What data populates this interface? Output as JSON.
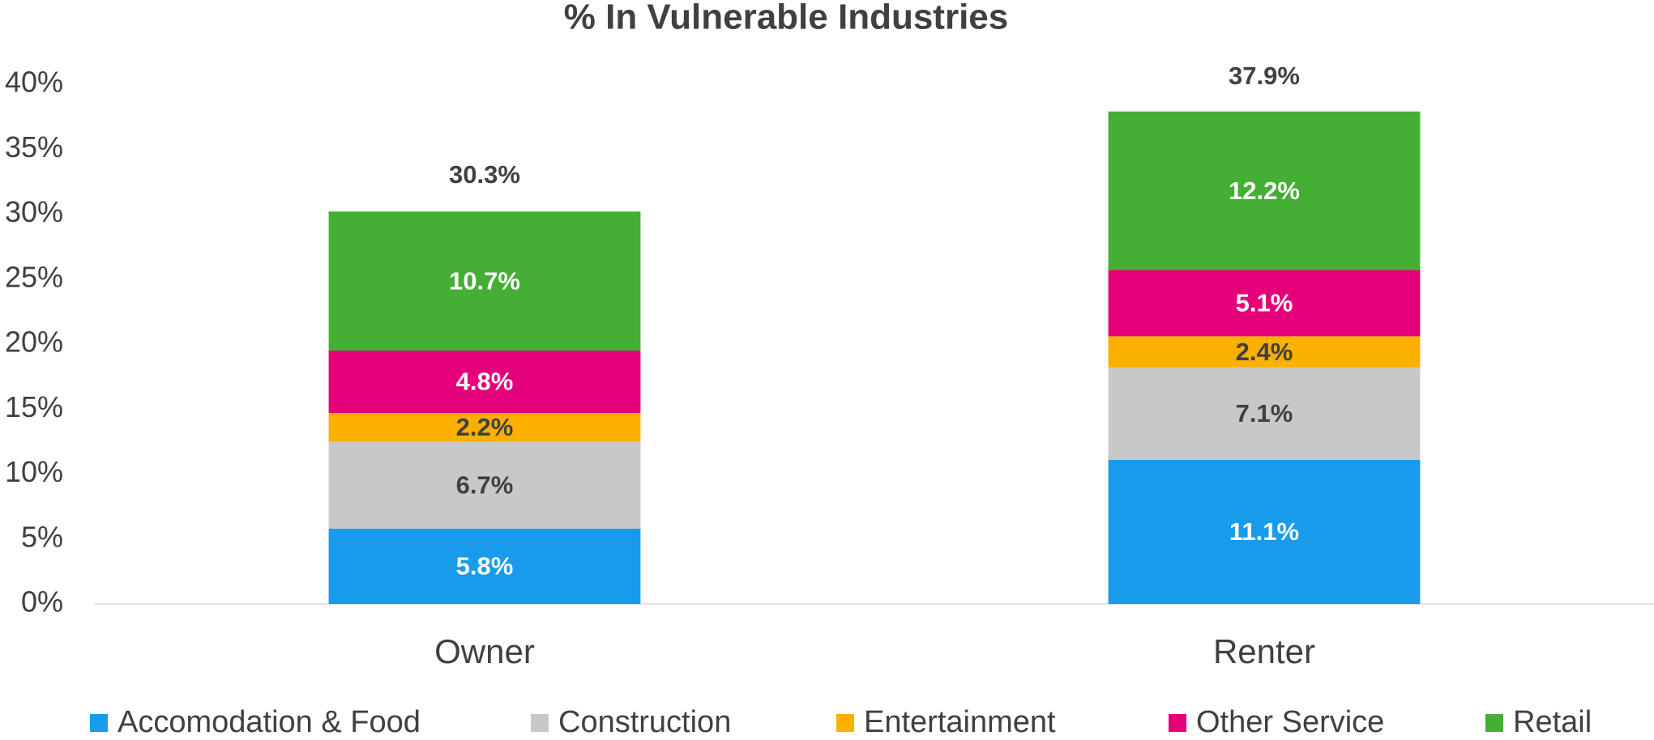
{
  "chart_data": {
    "type": "stacked_bar",
    "title": "% In Vulnerable Industries",
    "categories": [
      "Owner",
      "Renter"
    ],
    "series": [
      {
        "name": "Accomodation & Food",
        "color": "#179bea",
        "label_color": "#ffffff",
        "values": [
          5.8,
          11.1
        ],
        "value_labels": [
          "5.8%",
          "11.1%"
        ]
      },
      {
        "name": "Construction",
        "color": "#c8c8c8",
        "label_color": "#404040",
        "values": [
          6.7,
          7.1
        ],
        "value_labels": [
          "6.7%",
          "7.1%"
        ]
      },
      {
        "name": "Entertainment",
        "color": "#fbb000",
        "label_color": "#404040",
        "values": [
          2.2,
          2.4
        ],
        "value_labels": [
          "2.2%",
          "2.4%"
        ]
      },
      {
        "name": "Other Service",
        "color": "#e5007a",
        "label_color": "#ffffff",
        "values": [
          4.8,
          5.1
        ],
        "value_labels": [
          "4.8%",
          "5.1%"
        ]
      },
      {
        "name": "Retail",
        "color": "#44ae35",
        "label_color": "#ffffff",
        "values": [
          10.7,
          12.2
        ],
        "value_labels": [
          "10.7%",
          "12.2%"
        ]
      }
    ],
    "totals": [
      30.3,
      37.9
    ],
    "total_labels": [
      "30.3%",
      "37.9%"
    ],
    "ylim": [
      0,
      40
    ],
    "yticks": [
      {
        "value": 0,
        "label": "0%"
      },
      {
        "value": 5,
        "label": "5%"
      },
      {
        "value": 10,
        "label": "10%"
      },
      {
        "value": 15,
        "label": "15%"
      },
      {
        "value": 20,
        "label": "20%"
      },
      {
        "value": 25,
        "label": "25%"
      },
      {
        "value": 30,
        "label": "30%"
      },
      {
        "value": 35,
        "label": "35%"
      },
      {
        "value": 40,
        "label": "40%"
      }
    ],
    "grid": false,
    "legend": "bottom"
  }
}
